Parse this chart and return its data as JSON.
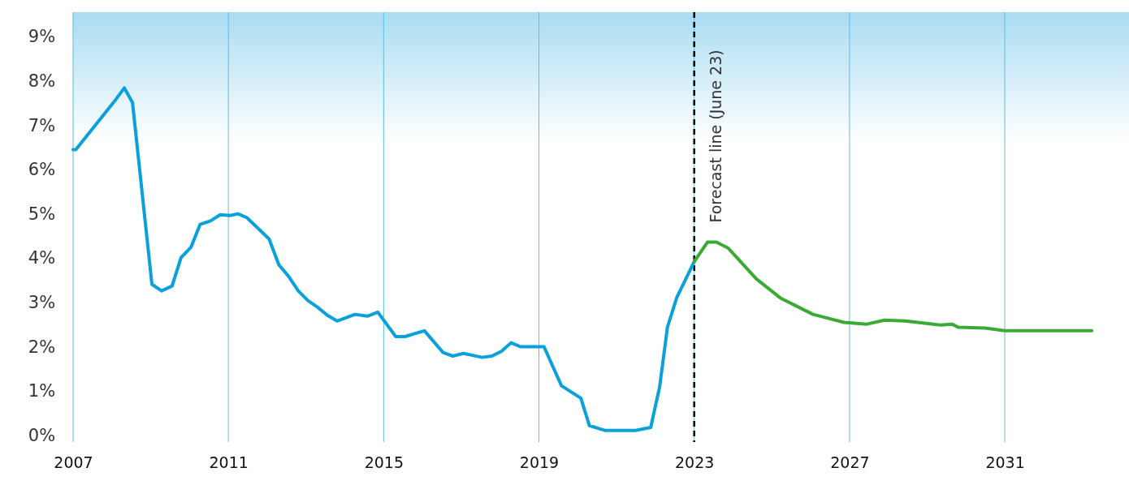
{
  "chart_data": {
    "type": "line",
    "xlim": [
      2007,
      2034.2
    ],
    "ylim": [
      -0.15,
      9.55
    ],
    "xticks": [
      2007,
      2011,
      2015,
      2019,
      2023,
      2027,
      2031
    ],
    "yticks": [
      {
        "value": 0,
        "label": "0%"
      },
      {
        "value": 1,
        "label": "1%"
      },
      {
        "value": 2,
        "label": "2%"
      },
      {
        "value": 3,
        "label": "3%"
      },
      {
        "value": 4,
        "label": "4%"
      },
      {
        "value": 5,
        "label": "5%"
      },
      {
        "value": 6,
        "label": "6%"
      },
      {
        "value": 7,
        "label": "7%"
      },
      {
        "value": 8,
        "label": "8%"
      },
      {
        "value": 9,
        "label": "9%"
      }
    ],
    "grid": "x",
    "marker": "none",
    "line_style": "solid",
    "series": [
      {
        "color": "#0aa0dc",
        "x": [
          2007,
          2007.07,
          2008.1,
          2008.32,
          2008.53,
          2009.03,
          2009.28,
          2009.55,
          2009.78,
          2010.04,
          2010.27,
          2010.54,
          2010.79,
          2011.04,
          2011.25,
          2011.48,
          2012.05,
          2012.3,
          2012.55,
          2012.8,
          2013.05,
          2013.3,
          2013.55,
          2013.8,
          2014.26,
          2014.58,
          2014.85,
          2015.31,
          2015.55,
          2016.05,
          2016.53,
          2016.78,
          2017.06,
          2017.54,
          2017.79,
          2018.04,
          2018.28,
          2018.53,
          2019.13,
          2019.58,
          2020.08,
          2020.3,
          2020.71,
          2021.49,
          2021.88,
          2022.11,
          2022.31,
          2022.55,
          2023
        ],
        "values": [
          6.45,
          6.45,
          7.58,
          7.84,
          7.51,
          3.41,
          3.26,
          3.37,
          4.01,
          4.25,
          4.76,
          4.84,
          4.98,
          4.96,
          5.0,
          4.91,
          4.43,
          3.85,
          3.59,
          3.26,
          3.04,
          2.89,
          2.71,
          2.58,
          2.73,
          2.69,
          2.78,
          2.23,
          2.23,
          2.36,
          1.87,
          1.79,
          1.85,
          1.76,
          1.79,
          1.9,
          2.09,
          2.0,
          2.0,
          1.12,
          0.84,
          0.22,
          0.11,
          0.11,
          0.18,
          1.1,
          2.44,
          3.11,
          3.92
        ]
      },
      {
        "color": "#3aaa35",
        "x": [
          2023,
          2023.34,
          2023.57,
          2023.87,
          2024.6,
          2025.22,
          2026.06,
          2026.86,
          2027.45,
          2027.9,
          2028.44,
          2029.34,
          2029.64,
          2029.8,
          2030.5,
          2031,
          2033.24
        ],
        "values": [
          3.92,
          4.36,
          4.36,
          4.23,
          3.53,
          3.1,
          2.73,
          2.55,
          2.51,
          2.6,
          2.58,
          2.49,
          2.51,
          2.44,
          2.42,
          2.36,
          2.36
        ]
      }
    ],
    "ref_lines": [
      {
        "axis": "x",
        "value": 2023,
        "label": "Forecast line (June 23)",
        "color": "#000000",
        "line_style": "dashed"
      }
    ]
  }
}
